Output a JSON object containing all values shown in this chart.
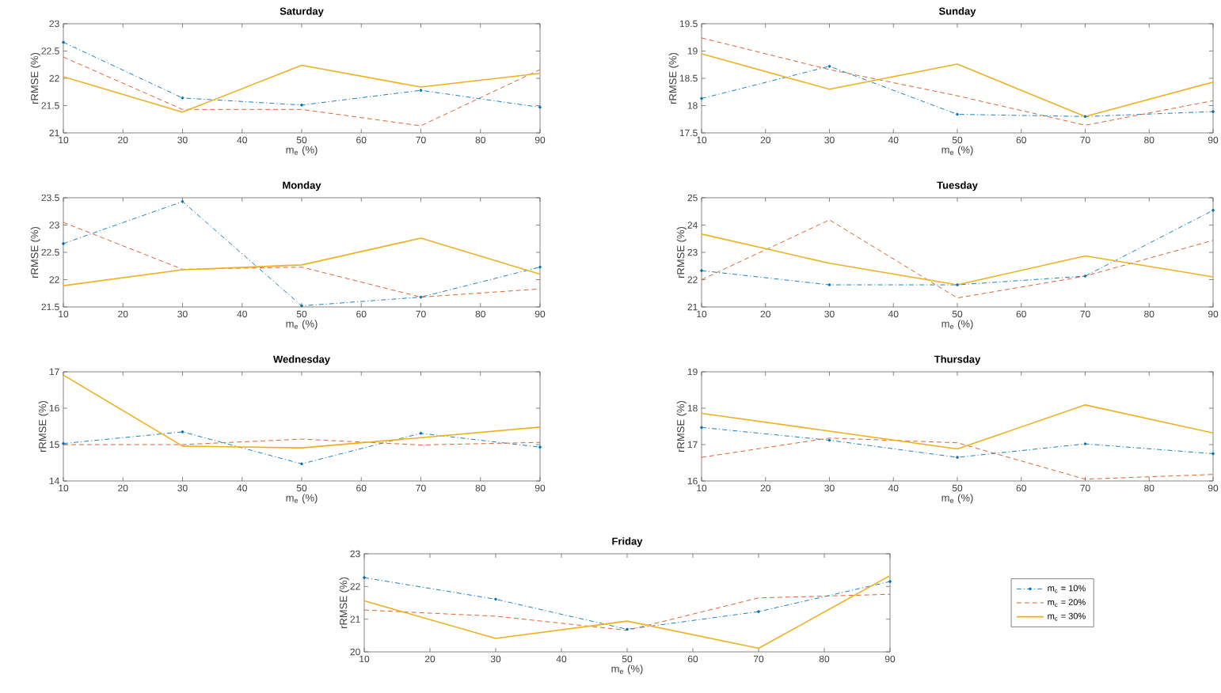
{
  "chart_data": [
    {
      "type": "line",
      "title": "Saturday",
      "xlabel": "m$_{e}$ (%)",
      "ylabel": "rRMSE (%)",
      "x": [
        10,
        30,
        50,
        70,
        90
      ],
      "xlim": [
        10,
        90
      ],
      "xticks": [
        10,
        20,
        30,
        40,
        50,
        60,
        70,
        80,
        90
      ],
      "ylim": [
        21,
        23
      ],
      "yticks": [
        21,
        21.5,
        22,
        22.5,
        23
      ],
      "series": [
        {
          "color": "#0072bd",
          "line_style": "dashdot",
          "marker": "circle",
          "values": [
            22.66,
            21.64,
            21.51,
            21.78,
            21.47
          ]
        },
        {
          "color": "#d95319",
          "line_style": "dashed",
          "values": [
            22.39,
            21.43,
            21.43,
            21.13,
            22.16
          ]
        },
        {
          "color": "#edb120",
          "line_style": "solid",
          "values": [
            22.03,
            21.38,
            22.24,
            21.84,
            22.09
          ]
        }
      ]
    },
    {
      "type": "line",
      "title": "Sunday",
      "xlabel": "m$_{e}$ (%)",
      "ylabel": "rRMSE (%)",
      "x": [
        10,
        30,
        50,
        70,
        90
      ],
      "xlim": [
        10,
        90
      ],
      "xticks": [
        10,
        20,
        30,
        40,
        50,
        60,
        70,
        80,
        90
      ],
      "ylim": [
        17.5,
        19.5
      ],
      "yticks": [
        17.5,
        18,
        18.5,
        19,
        19.5
      ],
      "series": [
        {
          "color": "#0072bd",
          "line_style": "dashdot",
          "marker": "circle",
          "values": [
            18.13,
            18.72,
            17.84,
            17.8,
            17.89
          ]
        },
        {
          "color": "#d95319",
          "line_style": "dashed",
          "values": [
            19.24,
            18.66,
            18.18,
            17.64,
            18.09
          ]
        },
        {
          "color": "#edb120",
          "line_style": "solid",
          "values": [
            18.95,
            18.3,
            18.76,
            17.8,
            18.43
          ]
        }
      ]
    },
    {
      "type": "line",
      "title": "Monday",
      "xlabel": "m$_{e}$ (%)",
      "ylabel": "rRMSE (%)",
      "x": [
        10,
        30,
        50,
        70,
        90
      ],
      "xlim": [
        10,
        90
      ],
      "xticks": [
        10,
        20,
        30,
        40,
        50,
        60,
        70,
        80,
        90
      ],
      "ylim": [
        21.5,
        23.5
      ],
      "yticks": [
        21.5,
        22,
        22.5,
        23,
        23.5
      ],
      "series": [
        {
          "color": "#0072bd",
          "line_style": "dashdot",
          "marker": "circle",
          "values": [
            22.66,
            23.43,
            21.52,
            21.68,
            22.23
          ]
        },
        {
          "color": "#d95319",
          "line_style": "dashed",
          "values": [
            23.05,
            22.19,
            22.23,
            21.68,
            21.83
          ]
        },
        {
          "color": "#edb120",
          "line_style": "solid",
          "values": [
            21.89,
            22.18,
            22.27,
            22.76,
            22.1
          ]
        }
      ]
    },
    {
      "type": "line",
      "title": "Tuesday",
      "xlabel": "m$_{e}$ (%)",
      "ylabel": "rRMSE (%)",
      "x": [
        10,
        30,
        50,
        70,
        90
      ],
      "xlim": [
        10,
        90
      ],
      "xticks": [
        10,
        20,
        30,
        40,
        50,
        60,
        70,
        80,
        90
      ],
      "ylim": [
        21,
        25
      ],
      "yticks": [
        21,
        22,
        23,
        24,
        25
      ],
      "series": [
        {
          "color": "#0072bd",
          "line_style": "dashdot",
          "marker": "circle",
          "values": [
            22.33,
            21.81,
            21.81,
            22.13,
            24.54
          ]
        },
        {
          "color": "#d95319",
          "line_style": "dashed",
          "values": [
            22.0,
            24.19,
            21.33,
            22.13,
            23.44
          ]
        },
        {
          "color": "#edb120",
          "line_style": "solid",
          "values": [
            23.67,
            22.6,
            21.81,
            22.87,
            22.1
          ]
        }
      ]
    },
    {
      "type": "line",
      "title": "Wednesday",
      "xlabel": "m$_{e}$ (%)",
      "ylabel": "rRMSE (%)",
      "x": [
        10,
        30,
        50,
        70,
        90
      ],
      "xlim": [
        10,
        90
      ],
      "xticks": [
        10,
        20,
        30,
        40,
        50,
        60,
        70,
        80,
        90
      ],
      "ylim": [
        14,
        17
      ],
      "yticks": [
        14,
        15,
        16,
        17
      ],
      "series": [
        {
          "color": "#0072bd",
          "line_style": "dashdot",
          "marker": "circle",
          "values": [
            15.03,
            15.35,
            14.47,
            15.31,
            14.93
          ]
        },
        {
          "color": "#d95319",
          "line_style": "dashed",
          "values": [
            15.0,
            15.0,
            15.15,
            14.99,
            15.06
          ]
        },
        {
          "color": "#edb120",
          "line_style": "solid",
          "values": [
            16.91,
            14.96,
            14.91,
            15.19,
            15.48
          ]
        }
      ]
    },
    {
      "type": "line",
      "title": "Thursday",
      "xlabel": "m$_{e}$ (%)",
      "ylabel": "rRMSE (%)",
      "x": [
        10,
        30,
        50,
        70,
        90
      ],
      "xlim": [
        10,
        90
      ],
      "xticks": [
        10,
        20,
        30,
        40,
        50,
        60,
        70,
        80,
        90
      ],
      "ylim": [
        16,
        19
      ],
      "yticks": [
        16,
        17,
        18,
        19
      ],
      "series": [
        {
          "color": "#0072bd",
          "line_style": "dashdot",
          "marker": "circle",
          "values": [
            17.47,
            17.12,
            16.65,
            17.02,
            16.75
          ]
        },
        {
          "color": "#d95319",
          "line_style": "dashed",
          "values": [
            16.65,
            17.18,
            17.05,
            16.05,
            16.18
          ]
        },
        {
          "color": "#edb120",
          "line_style": "solid",
          "values": [
            17.86,
            17.37,
            16.88,
            18.09,
            17.32
          ]
        }
      ]
    },
    {
      "type": "line",
      "title": "Friday",
      "xlabel": "m$_{e}$ (%)",
      "ylabel": "rRMSE (%)",
      "x": [
        10,
        30,
        50,
        70,
        90
      ],
      "xlim": [
        10,
        90
      ],
      "xticks": [
        10,
        20,
        30,
        40,
        50,
        60,
        70,
        80,
        90
      ],
      "ylim": [
        20,
        23
      ],
      "yticks": [
        20,
        21,
        22,
        23
      ],
      "legend": "right",
      "series": [
        {
          "name": "m$_{c}$ = 10%",
          "color": "#0072bd",
          "line_style": "dashdot",
          "marker": "circle",
          "values": [
            22.27,
            21.61,
            20.69,
            21.23,
            22.15
          ]
        },
        {
          "name": "m$_{c}$ = 20%",
          "color": "#d95319",
          "line_style": "dashed",
          "values": [
            21.28,
            21.09,
            20.66,
            21.65,
            21.76
          ]
        },
        {
          "name": "m$_{c}$ = 30%",
          "color": "#edb120",
          "line_style": "solid",
          "values": [
            21.56,
            20.41,
            20.94,
            20.11,
            22.33
          ]
        }
      ]
    }
  ]
}
